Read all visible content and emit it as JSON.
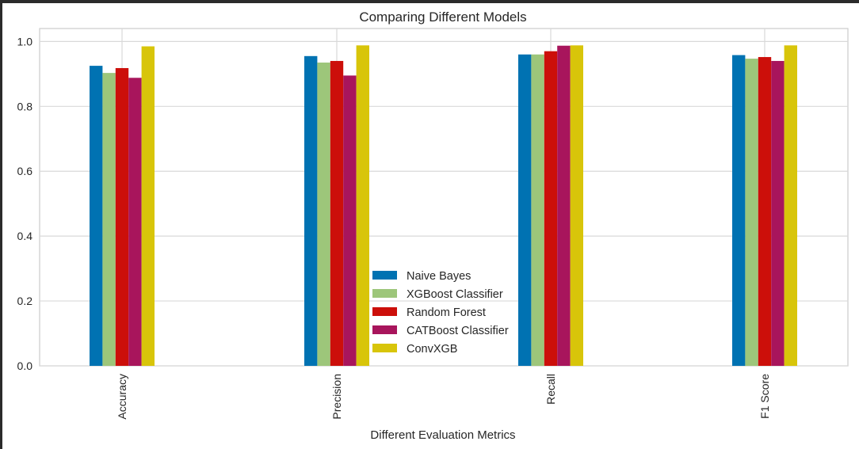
{
  "chart_data": {
    "type": "bar",
    "title": "Comparing Different Models",
    "xlabel": "Different Evaluation Metrics",
    "ylabel": "",
    "categories": [
      "Accuracy",
      "Precision",
      "Recall",
      "F1 Score"
    ],
    "ylim": [
      0,
      1.04
    ],
    "yticks": [
      "0.0",
      "0.2",
      "0.4",
      "0.6",
      "0.8",
      "1.0"
    ],
    "grid": true,
    "legend_position": "bottom-center",
    "series": [
      {
        "name": "Naive Bayes",
        "color": "#0072b2",
        "values": [
          0.925,
          0.955,
          0.96,
          0.958
        ]
      },
      {
        "name": "XGBoost Classifier",
        "color": "#9dc67a",
        "values": [
          0.903,
          0.935,
          0.96,
          0.947
        ]
      },
      {
        "name": "Random Forest",
        "color": "#cc0f0a",
        "values": [
          0.918,
          0.94,
          0.97,
          0.952
        ]
      },
      {
        "name": "CATBoost Classifier",
        "color": "#a8155c",
        "values": [
          0.888,
          0.895,
          0.987,
          0.94
        ]
      },
      {
        "name": "ConvXGB",
        "color": "#d8c50a",
        "values": [
          0.985,
          0.988,
          0.988,
          0.988
        ]
      }
    ]
  }
}
